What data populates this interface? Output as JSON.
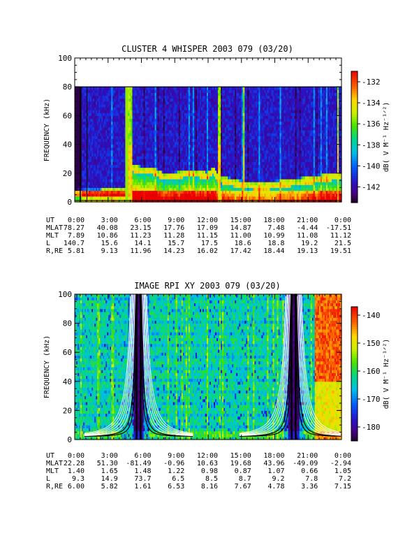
{
  "chart_data": [
    {
      "type": "heatmap",
      "title": "CLUSTER 4 WHISPER 2003 079 (03/20)",
      "ylabel": "FREQUENCY (kHz)",
      "ylim": [
        0,
        100
      ],
      "yticks": [
        "0",
        "20",
        "40",
        "60",
        "80",
        "100"
      ],
      "data_freq_max_khz": 80,
      "colorbar": {
        "label": "dB( V M⁻¹ Hz⁻¹ᐟ²)",
        "ticks": [
          "-132",
          "-134",
          "-136",
          "-138",
          "-140",
          "-142"
        ],
        "range": [
          -143.5,
          -131
        ]
      },
      "x_table": {
        "row_labels": [
          "UT",
          "MLAT",
          "MLT",
          "L",
          "R,RE"
        ],
        "columns": [
          [
            "0:00",
            "78.27",
            "7.89",
            "140.7",
            "5.81"
          ],
          [
            "3:00",
            "40.08",
            "10.86",
            "15.6",
            "9.13"
          ],
          [
            "6:00",
            "23.15",
            "11.23",
            "14.1",
            "11.96"
          ],
          [
            "9:00",
            "17.76",
            "11.28",
            "15.7",
            "14.23"
          ],
          [
            "12:00",
            "17.09",
            "11.15",
            "17.5",
            "16.02"
          ],
          [
            "15:00",
            "14.87",
            "11.00",
            "18.6",
            "17.42"
          ],
          [
            "18:00",
            "7.48",
            "10.99",
            "18.8",
            "18.44"
          ],
          [
            "21:00",
            "-4.44",
            "11.08",
            "19.2",
            "19.13"
          ],
          [
            "0:00",
            "-17.51",
            "11.12",
            "21.5",
            "19.51"
          ]
        ]
      },
      "x_hours": [
        0,
        3,
        6,
        9,
        12,
        15,
        18,
        21,
        24
      ],
      "features": {
        "background_db": -141.5,
        "plasma_line_khz": [
          [
            0.3,
            6
          ],
          [
            4.6,
            7
          ],
          [
            5.1,
            24
          ],
          [
            6.0,
            22
          ],
          [
            7.0,
            22
          ],
          [
            8.0,
            18
          ],
          [
            9.0,
            18
          ],
          [
            10.0,
            20
          ],
          [
            11.0,
            20
          ],
          [
            12.0,
            18
          ],
          [
            12.5,
            22
          ],
          [
            12.9,
            16
          ],
          [
            13.5,
            15
          ],
          [
            15.0,
            12
          ],
          [
            17.0,
            11
          ],
          [
            19.0,
            13
          ],
          [
            21.0,
            15
          ],
          [
            23.5,
            18
          ]
        ],
        "broadband_bursts_hours": [
          [
            4.55,
            5.15
          ],
          [
            12.9,
            13.15
          ],
          [
            15.1,
            15.3
          ],
          [
            23.6,
            23.8
          ]
        ]
      }
    },
    {
      "type": "heatmap",
      "title": "IMAGE RPI XY 2003 079 (03/20)",
      "ylabel": "FREQUENCY (kHz)",
      "ylim": [
        0,
        100
      ],
      "yticks": [
        "0",
        "20",
        "40",
        "60",
        "80",
        "100"
      ],
      "colorbar": {
        "label": "dB( V M⁻¹ Hz⁻¹ᐟ²)",
        "ticks": [
          "-140",
          "-150",
          "-160",
          "-170",
          "-180"
        ],
        "range": [
          -185,
          -137
        ]
      },
      "x_table": {
        "row_labels": [
          "UT",
          "MLAT",
          "MLT",
          "L",
          "R,RE"
        ],
        "columns": [
          [
            "0:00",
            "22.28",
            "1.40",
            "9.3",
            "6.00"
          ],
          [
            "3:00",
            "51.30",
            "1.65",
            "14.9",
            "5.82"
          ],
          [
            "6:00",
            "-81.49",
            "1.48",
            "73.7",
            "1.61"
          ],
          [
            "9:00",
            "-0.96",
            "1.22",
            "6.5",
            "6.53"
          ],
          [
            "12:00",
            "10.63",
            "0.98",
            "8.5",
            "8.16"
          ],
          [
            "15:00",
            "19.68",
            "0.87",
            "8.7",
            "7.67"
          ],
          [
            "18:00",
            "43.96",
            "1.07",
            "9.2",
            "4.78"
          ],
          [
            "21:00",
            "-49.09",
            "0.66",
            "7.8",
            "3.36"
          ],
          [
            "0:00",
            "-2.94",
            "1.05",
            "7.2",
            "7.15"
          ]
        ]
      },
      "x_hours": [
        0,
        3,
        6,
        9,
        12,
        15,
        18,
        21,
        24
      ],
      "features": {
        "background_db": -163,
        "perigee_hours": [
          5.75,
          19.7
        ],
        "gyro_line_hours": [
          5.2,
          5.8,
          19.2,
          19.8
        ],
        "high_intensity_hours": [
          [
            21.6,
            24
          ]
        ]
      }
    }
  ]
}
